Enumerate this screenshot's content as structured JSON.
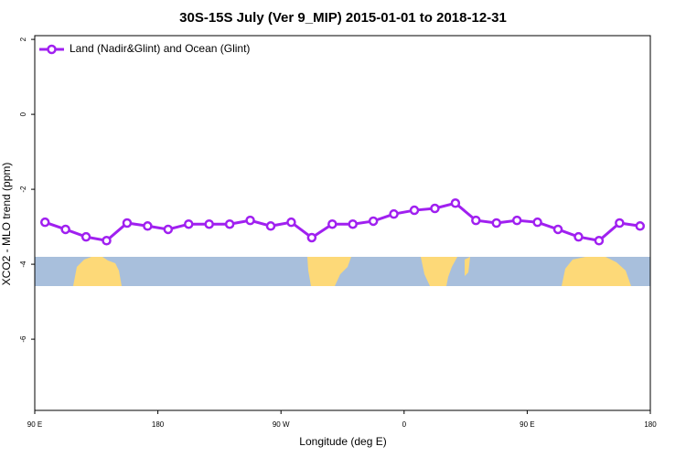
{
  "chart_data": {
    "type": "line",
    "title": "30S-15S July (Ver 9_MIP)   2015-01-01 to 2018-12-31",
    "x_label": "Longitude (deg E)",
    "y_label": "XCO2 - MLO trend (ppm)",
    "x": [
      97.5,
      112.5,
      127.5,
      142.5,
      157.5,
      172.5,
      187.5,
      202.5,
      217.5,
      232.5,
      247.5,
      262.5,
      277.5,
      292.5,
      307.5,
      322.5,
      337.5,
      352.5,
      367.5,
      382.5,
      397.5,
      412.5,
      427.5,
      442.5,
      457.5,
      472.5,
      487.5,
      502.5,
      517.5,
      532.5
    ],
    "series": [
      {
        "name": "Land (Nadir&Glint) and Ocean (Glint)",
        "color": "#a020f0",
        "values": [
          -2.88,
          -3.07,
          -3.27,
          -3.37,
          -2.9,
          -2.98,
          -3.07,
          -2.93,
          -2.93,
          -2.93,
          -2.83,
          -2.98,
          -2.88,
          -3.29,
          -2.93,
          -2.93,
          -2.85,
          -2.66,
          -2.56,
          -2.51,
          -2.37,
          -2.83,
          -2.9,
          -2.83,
          -2.88,
          -3.07,
          -3.27,
          -3.37,
          -2.9,
          -2.98
        ]
      }
    ],
    "xlim": [
      90,
      540
    ],
    "xticks": [
      {
        "value": 90,
        "label": "90 E"
      },
      180,
      {
        "value": 270,
        "label": "90 W"
      },
      {
        "value": 360,
        "label": "0"
      },
      {
        "value": 450,
        "label": "90 E"
      },
      {
        "value": 540,
        "label": "180"
      }
    ],
    "ylim": [
      -7.9,
      2.1
    ],
    "yticks": [
      2,
      0,
      -2,
      -4,
      -6
    ],
    "legend": "top-left"
  }
}
